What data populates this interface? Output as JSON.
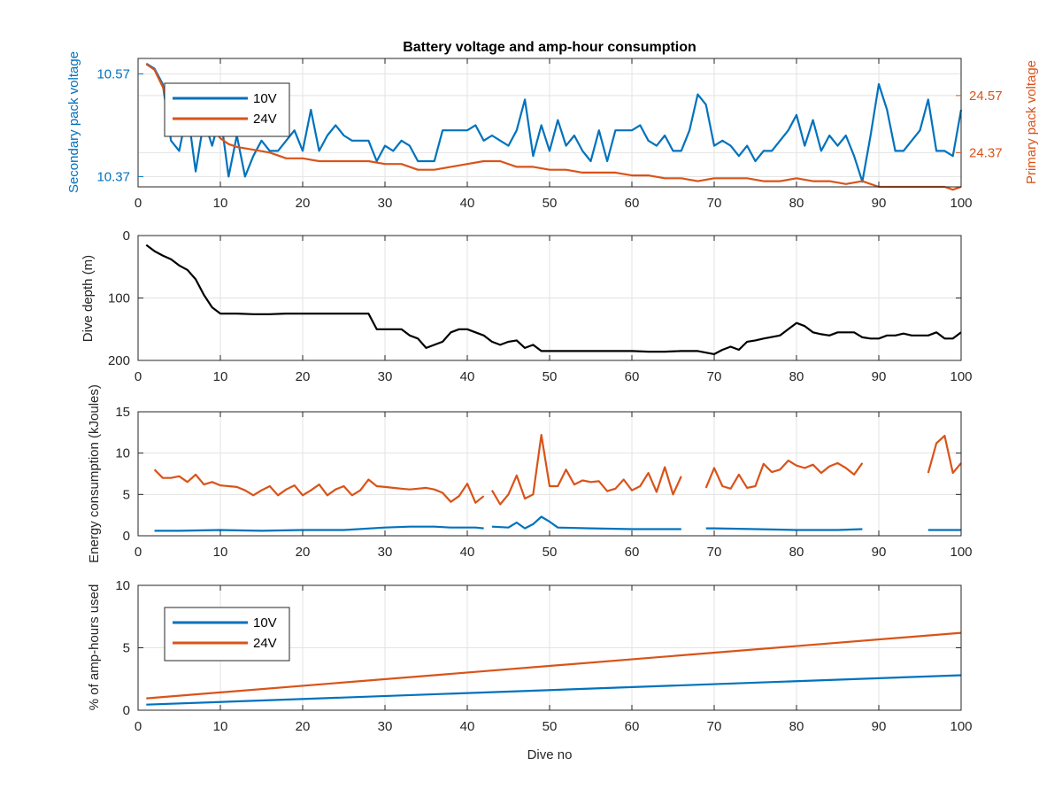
{
  "chart_data": [
    {
      "type": "line",
      "title": "Battery voltage and amp-hour consumption",
      "xlabel": "",
      "ylabel": "Secondary pack voltage",
      "ylabel_right": "Primary pack voltage",
      "xlim": [
        0,
        100
      ],
      "ylim": [
        10.35,
        10.6
      ],
      "ylim_right": [
        24.25,
        24.7
      ],
      "xticks": [
        0,
        10,
        20,
        30,
        40,
        50,
        60,
        70,
        80,
        90,
        100
      ],
      "yticks": [
        10.37,
        10.57
      ],
      "yticks_right": [
        24.37,
        24.57
      ],
      "grid": true,
      "legend": "top-left",
      "series": [
        {
          "name": "10V",
          "axis": "left",
          "color": "#0072BD",
          "x": [
            1,
            2,
            3,
            4,
            5,
            6,
            7,
            8,
            9,
            10,
            11,
            12,
            13,
            14,
            15,
            16,
            17,
            18,
            19,
            20,
            21,
            22,
            23,
            24,
            25,
            26,
            27,
            28,
            29,
            30,
            31,
            32,
            33,
            34,
            35,
            36,
            37,
            38,
            39,
            40,
            41,
            42,
            43,
            44,
            45,
            46,
            47,
            48,
            49,
            50,
            51,
            52,
            53,
            54,
            55,
            56,
            57,
            58,
            59,
            60,
            61,
            62,
            63,
            64,
            65,
            66,
            67,
            68,
            69,
            70,
            71,
            72,
            73,
            74,
            75,
            76,
            77,
            78,
            79,
            80,
            81,
            82,
            83,
            84,
            85,
            86,
            87,
            88,
            89,
            90,
            91,
            92,
            93,
            94,
            95,
            96,
            97,
            98,
            99,
            100
          ],
          "y": [
            10.59,
            10.58,
            10.55,
            10.44,
            10.42,
            10.5,
            10.38,
            10.48,
            10.43,
            10.49,
            10.37,
            10.45,
            10.37,
            10.41,
            10.44,
            10.42,
            10.42,
            10.44,
            10.46,
            10.42,
            10.5,
            10.42,
            10.45,
            10.47,
            10.45,
            10.44,
            10.44,
            10.44,
            10.4,
            10.43,
            10.42,
            10.44,
            10.43,
            10.4,
            10.4,
            10.4,
            10.46,
            10.46,
            10.46,
            10.46,
            10.47,
            10.44,
            10.45,
            10.44,
            10.43,
            10.46,
            10.52,
            10.41,
            10.47,
            10.42,
            10.48,
            10.43,
            10.45,
            10.42,
            10.4,
            10.46,
            10.4,
            10.46,
            10.46,
            10.46,
            10.47,
            10.44,
            10.43,
            10.45,
            10.42,
            10.42,
            10.46,
            10.53,
            10.51,
            10.43,
            10.44,
            10.43,
            10.41,
            10.43,
            10.4,
            10.42,
            10.42,
            10.44,
            10.46,
            10.49,
            10.43,
            10.48,
            10.42,
            10.45,
            10.43,
            10.45,
            10.41,
            10.36,
            10.45,
            10.55,
            10.5,
            10.42,
            10.42,
            10.44,
            10.46,
            10.52,
            10.42,
            10.42,
            10.41,
            10.5
          ]
        },
        {
          "name": "24V",
          "axis": "right",
          "color": "#D95319",
          "x": [
            1,
            2,
            3,
            4,
            5,
            6,
            7,
            8,
            9,
            10,
            11,
            12,
            14,
            16,
            18,
            20,
            22,
            24,
            26,
            28,
            30,
            32,
            34,
            36,
            38,
            40,
            42,
            44,
            46,
            48,
            50,
            52,
            54,
            56,
            58,
            60,
            62,
            64,
            66,
            68,
            70,
            72,
            74,
            76,
            78,
            80,
            82,
            84,
            86,
            88,
            90,
            92,
            94,
            96,
            98,
            99,
            100
          ],
          "y": [
            24.68,
            24.66,
            24.6,
            24.52,
            24.48,
            24.47,
            24.46,
            24.46,
            24.46,
            24.42,
            24.4,
            24.39,
            24.38,
            24.37,
            24.35,
            24.35,
            24.34,
            24.34,
            24.34,
            24.34,
            24.33,
            24.33,
            24.31,
            24.31,
            24.32,
            24.33,
            24.34,
            24.34,
            24.32,
            24.32,
            24.31,
            24.31,
            24.3,
            24.3,
            24.3,
            24.29,
            24.29,
            24.28,
            24.28,
            24.27,
            24.28,
            24.28,
            24.28,
            24.27,
            24.27,
            24.28,
            24.27,
            24.27,
            24.26,
            24.27,
            24.25,
            24.25,
            24.25,
            24.25,
            24.25,
            24.24,
            24.25
          ]
        }
      ]
    },
    {
      "type": "line",
      "title": "",
      "xlabel": "",
      "ylabel": "Dive depth (m)",
      "xlim": [
        0,
        100
      ],
      "ylim": [
        0,
        200
      ],
      "y_reversed": true,
      "xticks": [
        0,
        10,
        20,
        30,
        40,
        50,
        60,
        70,
        80,
        90,
        100
      ],
      "yticks": [
        0,
        100,
        200
      ],
      "grid": true,
      "series": [
        {
          "name": "",
          "color": "#000000",
          "x": [
            1,
            2,
            3,
            4,
            5,
            6,
            7,
            8,
            9,
            10,
            12,
            14,
            16,
            18,
            20,
            22,
            24,
            26,
            28,
            29,
            30,
            31,
            32,
            33,
            34,
            35,
            36,
            37,
            38,
            39,
            40,
            41,
            42,
            43,
            44,
            45,
            46,
            47,
            48,
            49,
            50,
            52,
            54,
            56,
            58,
            60,
            62,
            64,
            66,
            68,
            70,
            71,
            72,
            73,
            74,
            75,
            76,
            78,
            80,
            81,
            82,
            83,
            84,
            85,
            86,
            87,
            88,
            89,
            90,
            91,
            92,
            93,
            94,
            95,
            96,
            97,
            98,
            99,
            100
          ],
          "y": [
            15,
            25,
            32,
            38,
            48,
            55,
            70,
            95,
            115,
            125,
            125,
            126,
            126,
            125,
            125,
            125,
            125,
            125,
            125,
            150,
            150,
            150,
            150,
            160,
            165,
            180,
            175,
            170,
            155,
            150,
            150,
            155,
            160,
            170,
            175,
            170,
            168,
            180,
            175,
            185,
            185,
            185,
            185,
            185,
            185,
            185,
            186,
            186,
            185,
            185,
            190,
            183,
            178,
            183,
            170,
            168,
            165,
            160,
            140,
            145,
            155,
            158,
            160,
            155,
            155,
            155,
            163,
            165,
            165,
            160,
            160,
            157,
            160,
            160,
            160,
            155,
            165,
            165,
            155
          ]
        }
      ]
    },
    {
      "type": "line",
      "title": "",
      "xlabel": "",
      "ylabel": "Energy consumption (kJoules)",
      "xlim": [
        0,
        100
      ],
      "ylim": [
        0,
        15
      ],
      "xticks": [
        0,
        10,
        20,
        30,
        40,
        50,
        60,
        70,
        80,
        90,
        100
      ],
      "yticks": [
        0,
        5,
        10,
        15
      ],
      "grid": true,
      "series": [
        {
          "name": "24V",
          "color": "#D95319",
          "x": [
            2,
            3,
            4,
            5,
            6,
            7,
            8,
            9,
            10,
            11,
            12,
            13,
            14,
            15,
            16,
            17,
            18,
            19,
            20,
            21,
            22,
            23,
            24,
            25,
            26,
            27,
            28,
            29,
            30,
            31,
            32,
            33,
            34,
            35,
            36,
            37,
            38,
            39,
            40,
            41,
            42,
            null,
            43,
            44,
            45,
            46,
            47,
            48,
            49,
            50,
            51,
            52,
            53,
            54,
            55,
            56,
            57,
            58,
            59,
            60,
            61,
            62,
            63,
            64,
            65,
            66,
            null,
            69,
            70,
            71,
            72,
            73,
            74,
            75,
            76,
            77,
            78,
            79,
            80,
            81,
            82,
            83,
            84,
            85,
            86,
            87,
            88,
            null,
            96,
            97,
            98,
            99,
            100
          ],
          "y": [
            8,
            7,
            7,
            7.2,
            6.5,
            7.4,
            6.2,
            6.5,
            6.1,
            6,
            5.9,
            5.5,
            4.9,
            5.5,
            6,
            4.9,
            5.6,
            6.1,
            4.9,
            5.5,
            6.2,
            4.9,
            5.6,
            6,
            4.9,
            5.5,
            6.8,
            6,
            5.9,
            5.8,
            5.7,
            5.6,
            5.7,
            5.8,
            5.6,
            5.2,
            4.1,
            4.8,
            6.3,
            4.0,
            4.8,
            null,
            5.5,
            3.8,
            5,
            7.3,
            4.5,
            5,
            12.2,
            6,
            6,
            8,
            6.2,
            6.7,
            6.5,
            6.6,
            5.4,
            5.7,
            6.8,
            5.5,
            6,
            7.6,
            5.3,
            8.3,
            5.0,
            7.2,
            null,
            5.8,
            8.2,
            6,
            5.7,
            7.4,
            5.8,
            6,
            8.7,
            7.7,
            8,
            9.1,
            8.5,
            8.2,
            8.6,
            7.6,
            8.4,
            8.8,
            8.2,
            7.4,
            8.8,
            null,
            7.6,
            11.2,
            12.1,
            7.6,
            8.8
          ]
        },
        {
          "name": "10V",
          "color": "#0072BD",
          "x": [
            2,
            5,
            10,
            15,
            20,
            25,
            30,
            33,
            36,
            38,
            40,
            41,
            42,
            null,
            43,
            45,
            46,
            47,
            48,
            49,
            50,
            51,
            55,
            60,
            65,
            66,
            null,
            69,
            70,
            75,
            80,
            85,
            88,
            null,
            96,
            100
          ],
          "y": [
            0.6,
            0.6,
            0.7,
            0.6,
            0.7,
            0.7,
            1.0,
            1.1,
            1.1,
            1.0,
            1.0,
            1.0,
            0.9,
            null,
            1.1,
            1.0,
            1.6,
            0.9,
            1.4,
            2.3,
            1.7,
            1.0,
            0.9,
            0.8,
            0.8,
            0.8,
            null,
            0.9,
            0.9,
            0.8,
            0.7,
            0.7,
            0.8,
            null,
            0.7,
            0.7
          ]
        }
      ]
    },
    {
      "type": "line",
      "title": "",
      "xlabel": "Dive no",
      "ylabel": "% of amp-hours used",
      "xlim": [
        0,
        100
      ],
      "ylim": [
        0,
        10
      ],
      "xticks": [
        0,
        10,
        20,
        30,
        40,
        50,
        60,
        70,
        80,
        90,
        100
      ],
      "yticks": [
        0,
        5,
        10
      ],
      "grid": true,
      "legend": "top-left",
      "series": [
        {
          "name": "10V",
          "color": "#0072BD",
          "x": [
            1,
            100
          ],
          "y": [
            0.45,
            2.8
          ]
        },
        {
          "name": "24V",
          "color": "#D95319",
          "x": [
            1,
            100
          ],
          "y": [
            0.95,
            6.2
          ]
        }
      ]
    }
  ]
}
